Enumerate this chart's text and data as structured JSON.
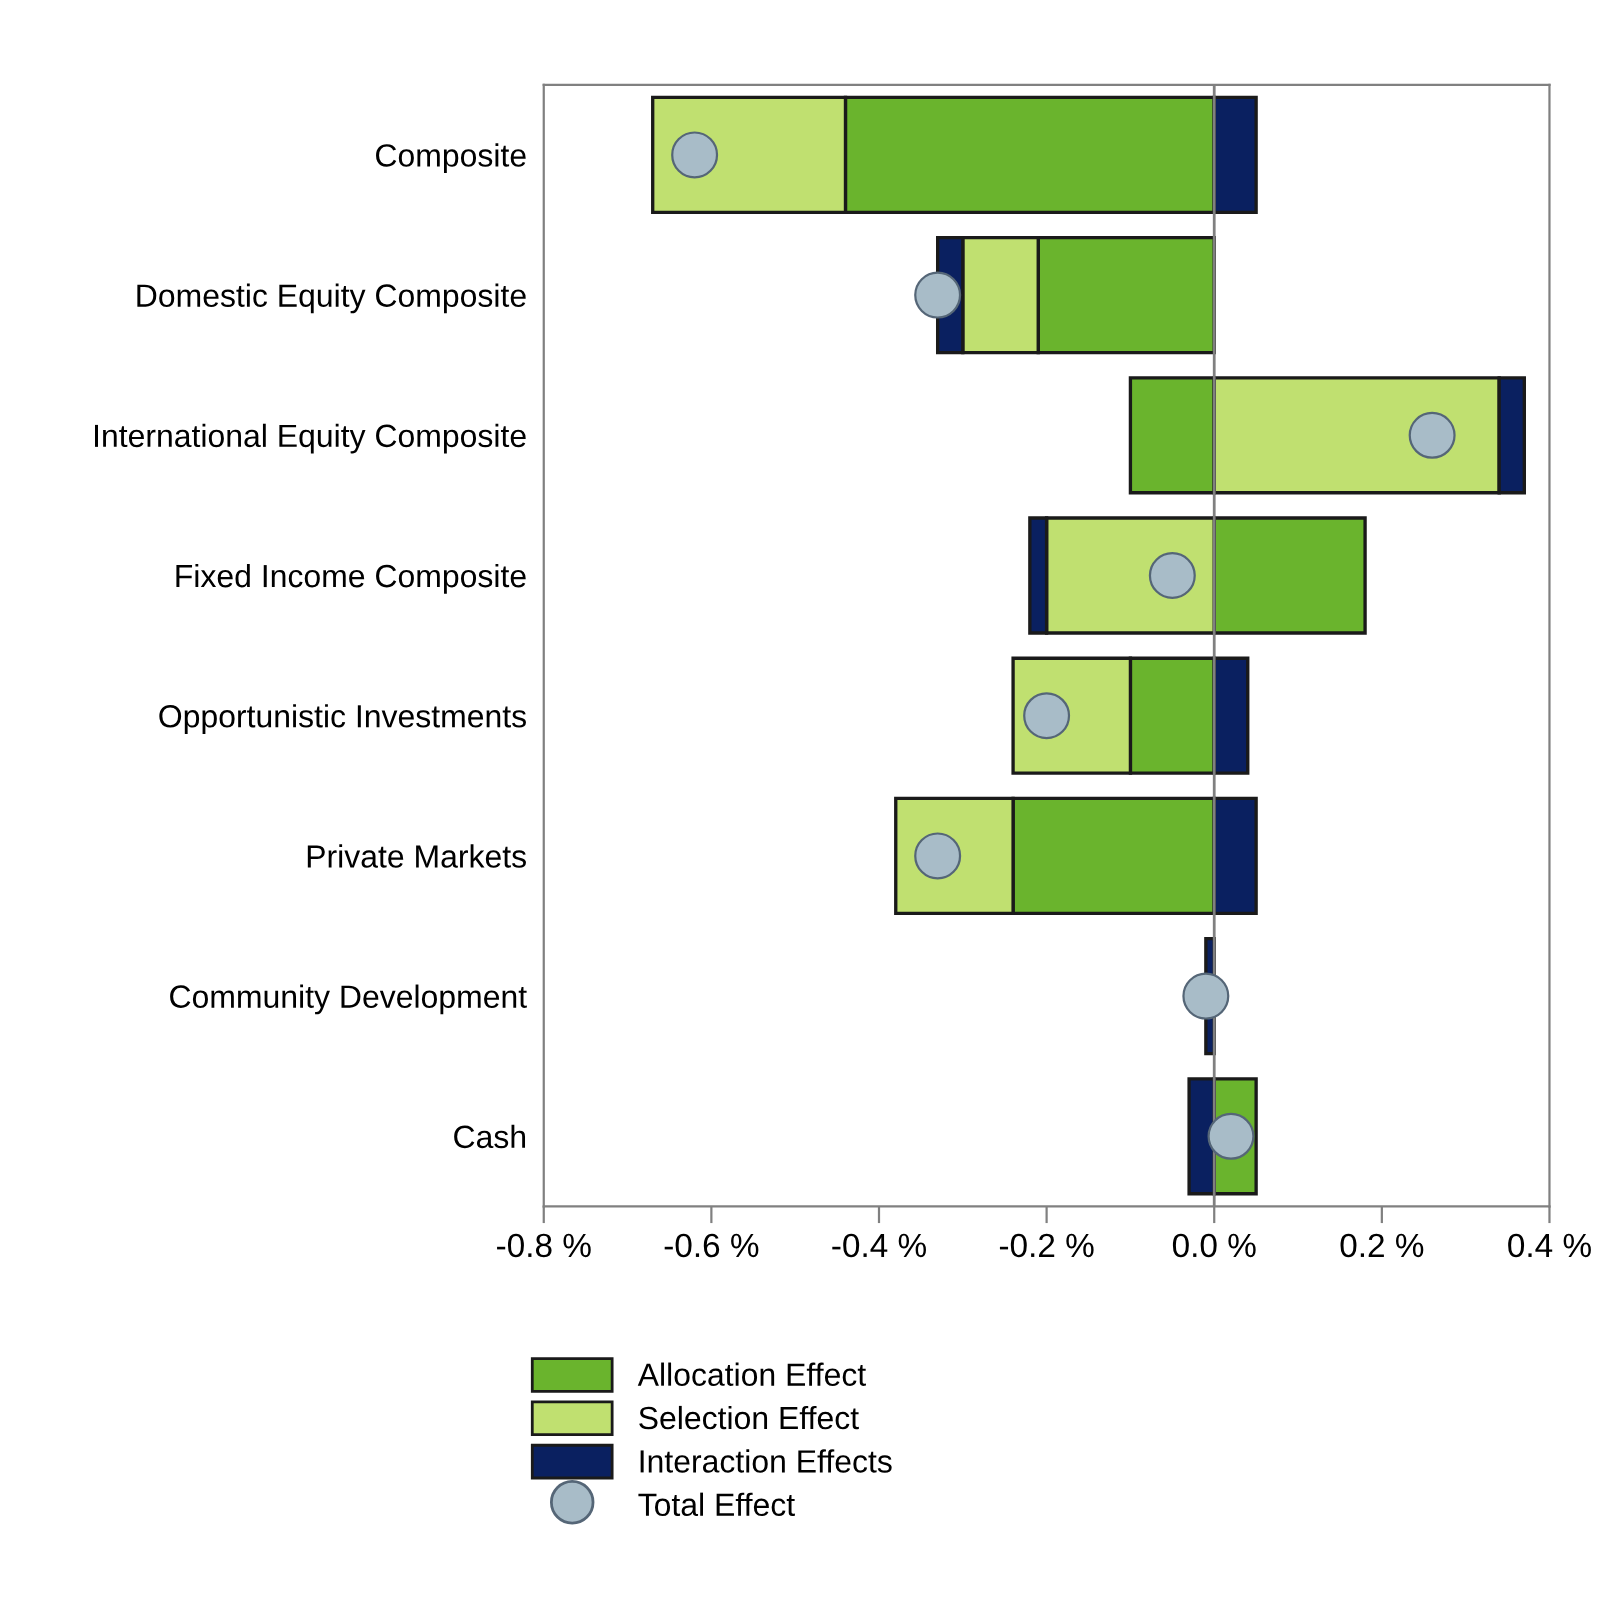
{
  "chart_data": {
    "type": "bar",
    "orientation": "horizontal",
    "stacked": true,
    "categories": [
      "Composite",
      "Domestic Equity Composite",
      "International Equity Composite",
      "Fixed Income Composite",
      "Opportunistic Investments",
      "Private Markets",
      "Community Development",
      "Cash"
    ],
    "series": [
      {
        "name": "Allocation Effect",
        "color": "#6ab42d",
        "values": [
          -0.44,
          -0.21,
          -0.1,
          0.18,
          -0.1,
          -0.24,
          0,
          0.05
        ]
      },
      {
        "name": "Selection Effect",
        "color": "#c0e070",
        "values": [
          -0.23,
          -0.09,
          0.34,
          -0.2,
          -0.14,
          -0.14,
          0,
          0
        ]
      },
      {
        "name": "Interaction Effects",
        "color": "#0a2060",
        "values": [
          0.05,
          -0.03,
          0.03,
          -0.02,
          0.04,
          0.05,
          -0.01,
          -0.03
        ]
      },
      {
        "name": "Total Effect",
        "type": "scatter",
        "color": "#a8bcc8",
        "values": [
          -0.62,
          -0.33,
          0.26,
          -0.05,
          -0.2,
          -0.33,
          -0.01,
          0.02
        ]
      }
    ],
    "xlim": [
      -0.8,
      0.4
    ],
    "xticks": [
      {
        "value": -0.8,
        "label": "-0.8 %"
      },
      {
        "value": -0.6,
        "label": "-0.6 %"
      },
      {
        "value": -0.4,
        "label": "-0.4 %"
      },
      {
        "value": -0.2,
        "label": "-0.2 %"
      },
      {
        "value": 0.0,
        "label": "0.0 %"
      },
      {
        "value": 0.2,
        "label": "0.2 %"
      },
      {
        "value": 0.4,
        "label": "0.4 %"
      }
    ],
    "ref_lines": [
      {
        "axis": "x",
        "value": 0,
        "color": "#808080"
      }
    ],
    "marker": "circle",
    "grid": false,
    "legend": "bottom"
  }
}
